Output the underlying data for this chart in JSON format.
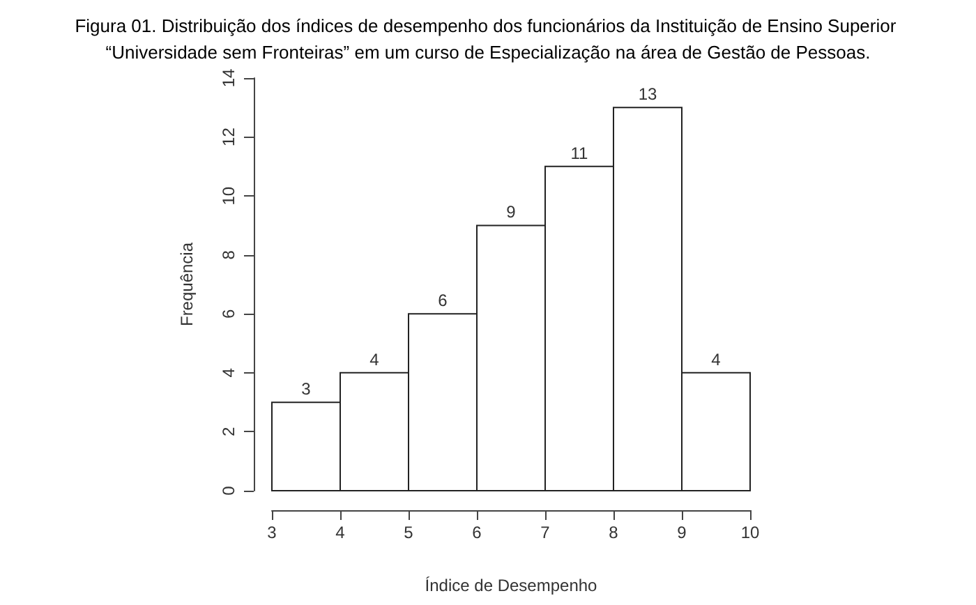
{
  "chart_data": {
    "type": "histogram",
    "title": "Figura 01. Distribuição dos índices de desempenho dos funcionários da Instituição de Ensino Superior “Universidade sem Fronteiras” em um curso de Especialização na área de Gestão de Pessoas.",
    "xlabel": "Índice de Desempenho",
    "ylabel": "Frequência",
    "bins": [
      3,
      4,
      5,
      6,
      7,
      8,
      9,
      10
    ],
    "values": [
      3,
      4,
      6,
      9,
      11,
      13,
      4
    ],
    "color": "#ffffff",
    "xlim": [
      3,
      10
    ],
    "xticks": [
      3,
      4,
      5,
      6,
      7,
      8,
      9,
      10
    ],
    "ylim": [
      0,
      14
    ],
    "yticks": [
      0,
      2,
      4,
      6,
      8,
      10,
      12,
      14
    ],
    "grid": false,
    "data_labels": true
  }
}
